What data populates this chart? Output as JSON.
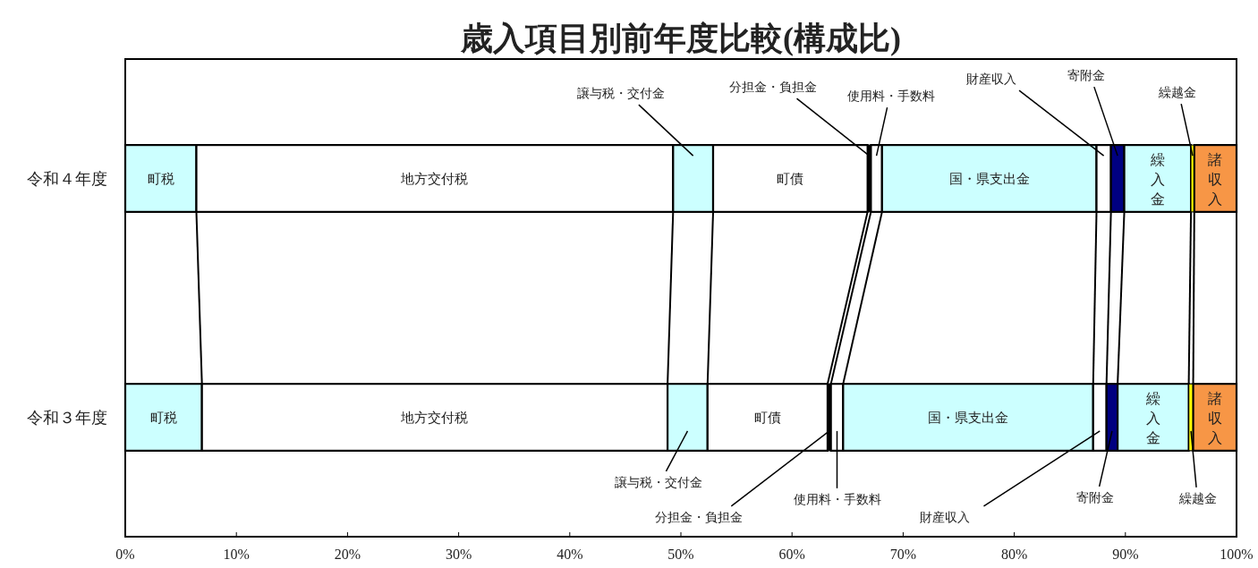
{
  "chart_data": {
    "type": "bar",
    "title": "歳入項目別前年度比較(構成比)",
    "orientation": "horizontal",
    "stacked": true,
    "categories": [
      "令和４年度",
      "令和３年度"
    ],
    "series": [
      {
        "name": "町税",
        "color": "#ccffff",
        "values": [
          6.4,
          6.9
        ]
      },
      {
        "name": "地方交付税",
        "color": "#ffffff",
        "values": [
          42.9,
          41.9
        ]
      },
      {
        "name": "譲与税・交付金",
        "color": "#ccffff",
        "values": [
          3.6,
          3.6
        ]
      },
      {
        "name": "町債",
        "color": "#ffffff",
        "values": [
          13.9,
          10.8
        ]
      },
      {
        "name": "分担金・負担金",
        "color": "#000000",
        "values": [
          0.3,
          0.3
        ]
      },
      {
        "name": "使用料・手数料",
        "color": "#ffffff",
        "values": [
          1.0,
          1.1
        ]
      },
      {
        "name": "国・県支出金",
        "color": "#ccffff",
        "values": [
          19.3,
          22.5
        ]
      },
      {
        "name": "財産収入",
        "color": "#ffffff",
        "values": [
          1.3,
          1.2
        ]
      },
      {
        "name": "寄附金",
        "color": "#000080",
        "values": [
          1.2,
          1.0
        ]
      },
      {
        "name": "繰入金",
        "color": "#ccffff",
        "values": [
          6.0,
          6.4
        ]
      },
      {
        "name": "繰越金",
        "color": "#ffff00",
        "values": [
          0.3,
          0.4
        ]
      },
      {
        "name": "諸収入",
        "color": "#f79646",
        "values": [
          3.8,
          3.9
        ]
      }
    ],
    "xlim": [
      0,
      100
    ],
    "xticks": [
      {
        "value": 0,
        "label": "0%"
      },
      {
        "value": 10,
        "label": "10%"
      },
      {
        "value": 20,
        "label": "20%"
      },
      {
        "value": 30,
        "label": "30%"
      },
      {
        "value": 40,
        "label": "40%"
      },
      {
        "value": 50,
        "label": "50%"
      },
      {
        "value": 60,
        "label": "60%"
      },
      {
        "value": 70,
        "label": "70%"
      },
      {
        "value": 80,
        "label": "80%"
      },
      {
        "value": 90,
        "label": "90%"
      },
      {
        "value": 100,
        "label": "100%"
      }
    ]
  }
}
